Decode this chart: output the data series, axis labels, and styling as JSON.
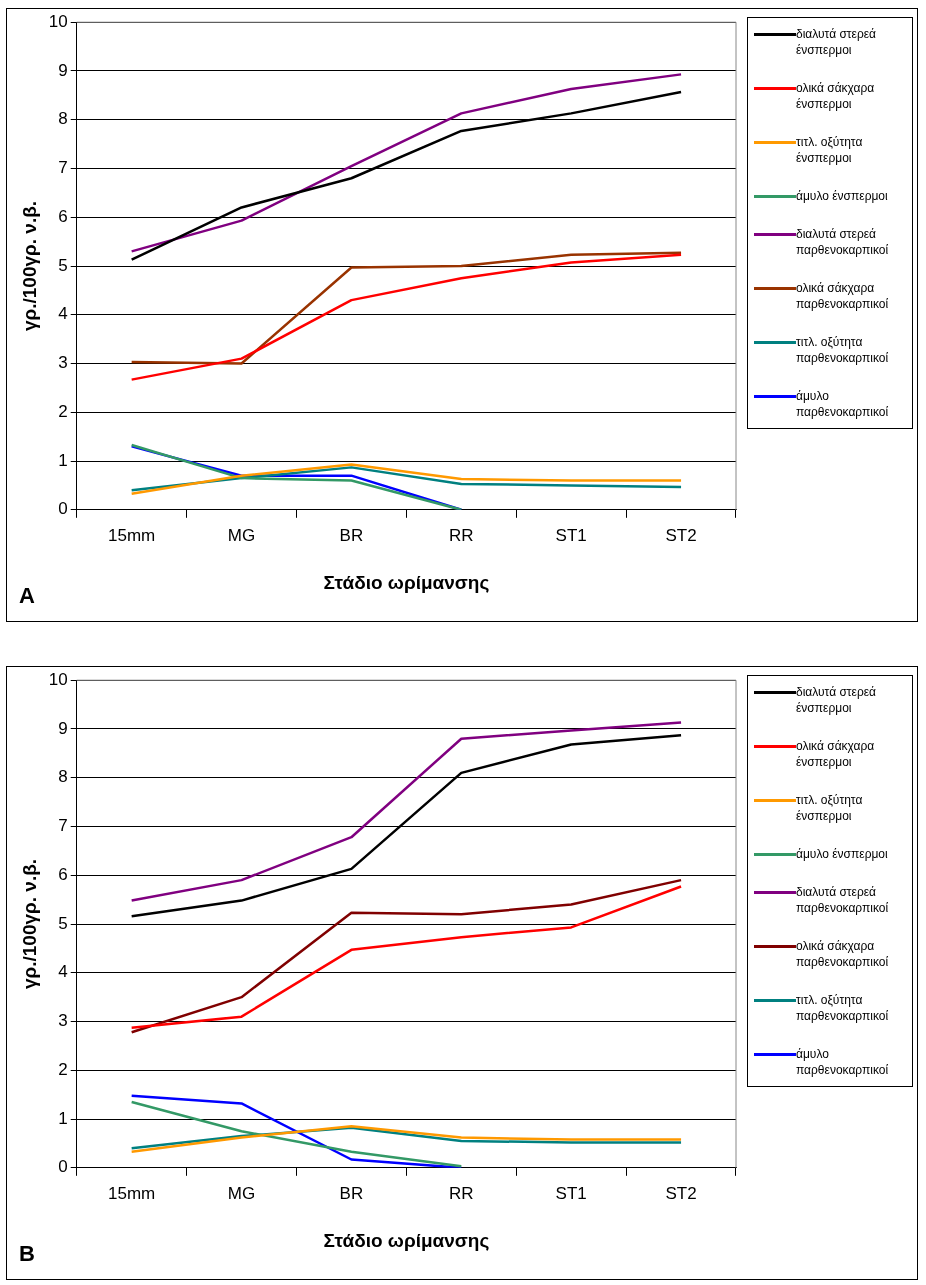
{
  "chart_data": [
    {
      "type": "line",
      "xlabel": "Στάδιο ωρίμανσης",
      "ylabel": "γρ./100γρ. ν.β.",
      "annotations": [
        "A"
      ],
      "categories": [
        "15mm",
        "MG",
        "BR",
        "RR",
        "ST1",
        "ST2"
      ],
      "ylim": [
        0,
        10
      ],
      "yticks": [
        0,
        1,
        2,
        3,
        4,
        5,
        6,
        7,
        8,
        9,
        10
      ],
      "grid": "y",
      "legend": "right",
      "marker": "none",
      "series": [
        {
          "name": "διαλυτά στερεά ένσπερμοι",
          "color": "#000000",
          "values": [
            5.13,
            6.2,
            6.8,
            7.77,
            8.13,
            8.57
          ]
        },
        {
          "name": "ολικά σάκχαρα ένσπερμοι",
          "color": "#ff0000",
          "values": [
            2.67,
            3.1,
            4.3,
            4.75,
            5.07,
            5.23
          ]
        },
        {
          "name": "τιτλ. οξύτητα ένσπερμοι",
          "color": "#ff9900",
          "values": [
            0.33,
            0.7,
            0.93,
            0.63,
            0.6,
            0.6
          ]
        },
        {
          "name": "άμυλο ένσπερμοι",
          "color": "#339966",
          "values": [
            1.33,
            0.65,
            0.6,
            0,
            null,
            null
          ]
        },
        {
          "name": "διαλυτά στερεά παρθενοκαρπικοί",
          "color": "#800080",
          "values": [
            5.3,
            5.93,
            7.05,
            8.13,
            8.63,
            8.93
          ]
        },
        {
          "name": "ολικά σάκχαρα παρθενοκαρπικοί",
          "color": "#993300",
          "values": [
            3.03,
            3.0,
            4.97,
            5.0,
            5.23,
            5.27
          ]
        },
        {
          "name": "τιτλ. οξύτητα παρθενοκαρπικοί",
          "color": "#008080",
          "values": [
            0.4,
            0.65,
            0.87,
            0.53,
            0.5,
            0.47
          ]
        },
        {
          "name": "άμυλο παρθενοκαρπικοί",
          "color": "#0000ff",
          "values": [
            1.3,
            0.7,
            0.7,
            0,
            null,
            null
          ]
        }
      ]
    },
    {
      "type": "line",
      "xlabel": "Στάδιο ωρίμανσης",
      "ylabel": "γρ./100γρ. ν.β.",
      "annotations": [
        "B"
      ],
      "categories": [
        "15mm",
        "MG",
        "BR",
        "RR",
        "ST1",
        "ST2"
      ],
      "ylim": [
        0,
        10
      ],
      "yticks": [
        0,
        1,
        2,
        3,
        4,
        5,
        6,
        7,
        8,
        9,
        10
      ],
      "grid": "y",
      "legend": "right",
      "marker": "none",
      "series": [
        {
          "name": "διαλυτά στερεά ένσπερμοι",
          "color": "#000000",
          "values": [
            5.16,
            5.48,
            6.13,
            8.1,
            8.68,
            8.87
          ]
        },
        {
          "name": "ολικά σάκχαρα ένσπερμοι",
          "color": "#ff0000",
          "values": [
            2.87,
            3.1,
            4.47,
            4.73,
            4.93,
            5.77
          ]
        },
        {
          "name": "τιτλ. οξύτητα ένσπερμοι",
          "color": "#ff9900",
          "values": [
            0.33,
            0.62,
            0.85,
            0.62,
            0.58,
            0.58
          ]
        },
        {
          "name": "άμυλο ένσπερμοι",
          "color": "#339966",
          "values": [
            1.35,
            0.75,
            0.33,
            0.03,
            null,
            null
          ]
        },
        {
          "name": "διαλυτά στερεά παρθενοκαρπικοί",
          "color": "#800080",
          "values": [
            5.48,
            5.9,
            6.78,
            8.8,
            8.97,
            9.13
          ]
        },
        {
          "name": "ολικά σάκχαρα παρθενοκαρπικοί",
          "color": "#800000",
          "values": [
            2.78,
            3.5,
            5.23,
            5.2,
            5.4,
            5.9
          ]
        },
        {
          "name": "τιτλ. οξύτητα παρθενοκαρπικοί",
          "color": "#008080",
          "values": [
            0.4,
            0.65,
            0.82,
            0.55,
            0.52,
            0.52
          ]
        },
        {
          "name": "άμυλο παρθενοκαρπικοί",
          "color": "#0000ff",
          "values": [
            1.48,
            1.32,
            0.17,
            0,
            null,
            null
          ]
        }
      ]
    }
  ]
}
